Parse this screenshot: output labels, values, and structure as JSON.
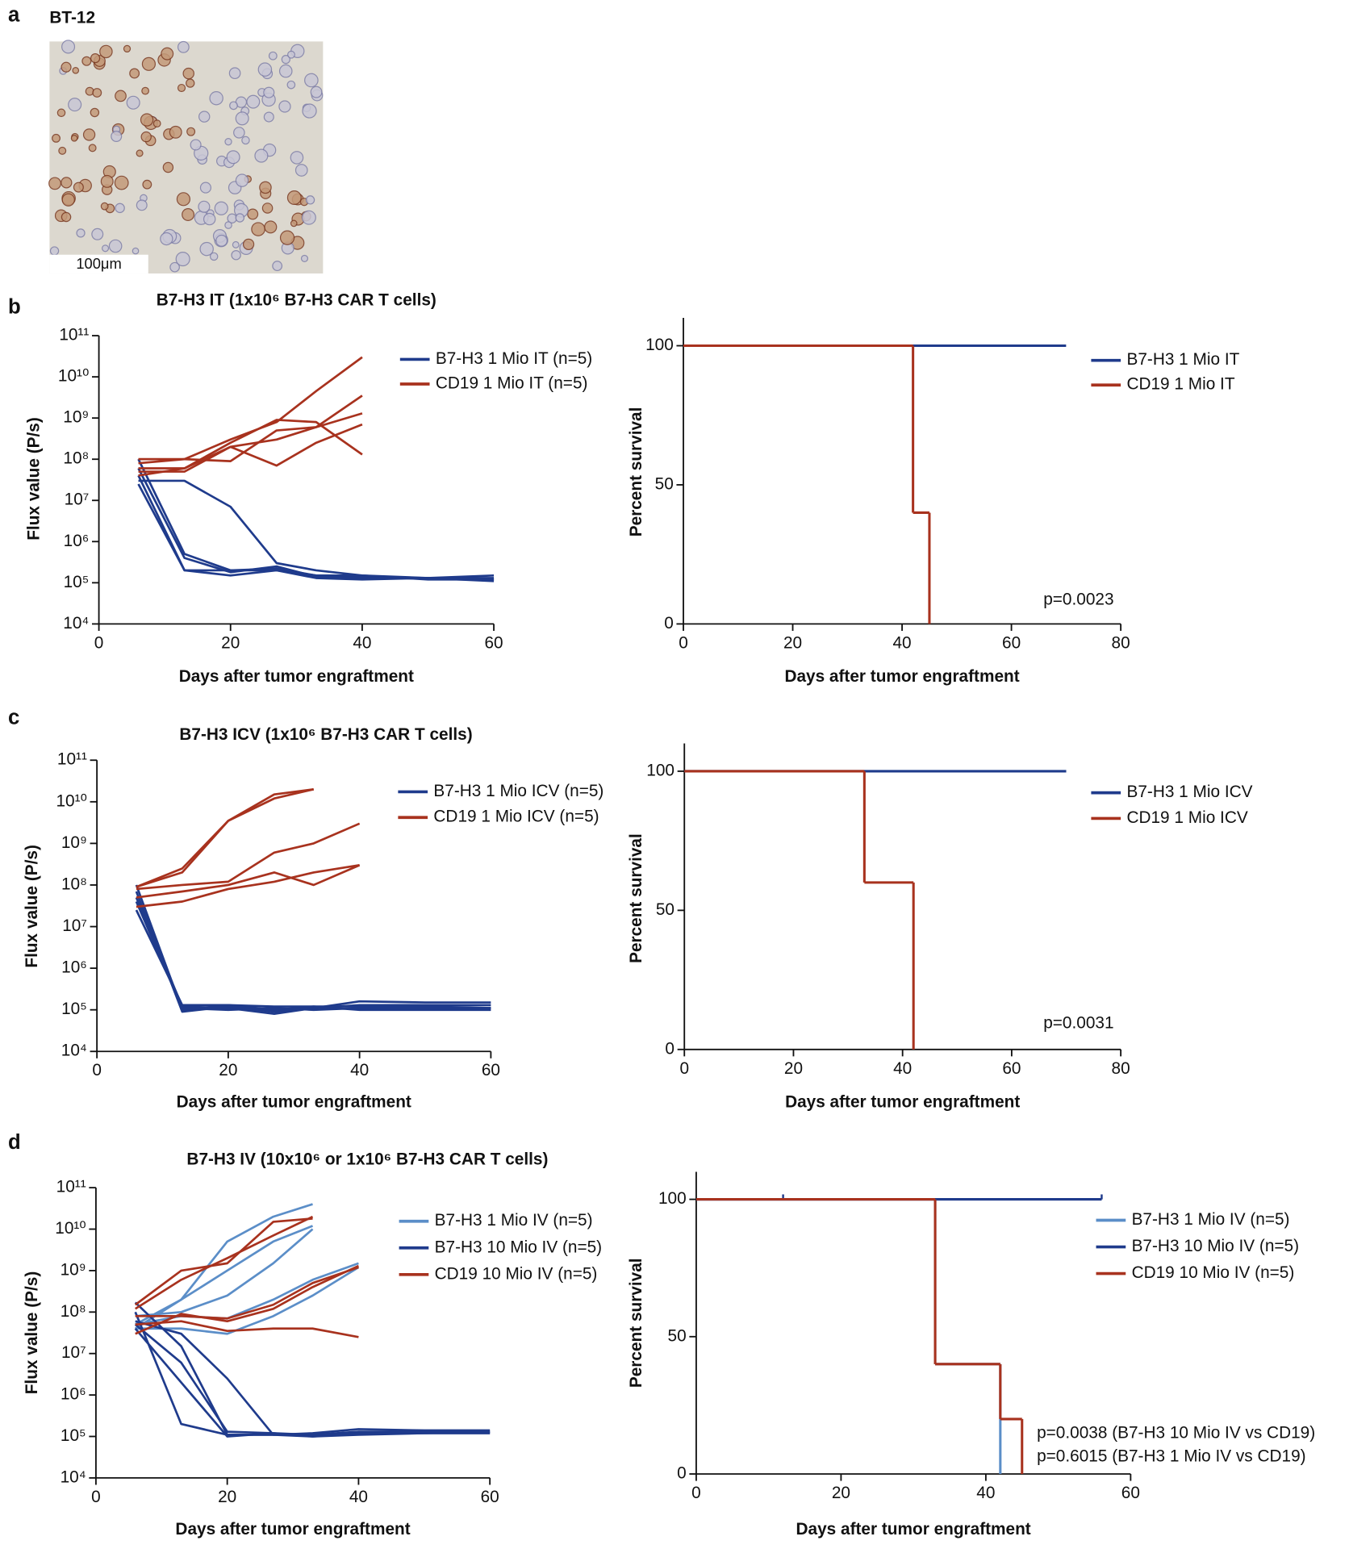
{
  "panel_labels": [
    "a",
    "b",
    "c",
    "d"
  ],
  "image": {
    "title": "BT-12",
    "scale_bar": "100μm"
  },
  "chart_data": [
    {
      "type": "line",
      "title": "B7-H3 IT (1x10⁶ B7-H3 CAR T cells)",
      "xlabel": "Days after tumor engraftment",
      "ylabel": "Flux value (P/s)",
      "log_y": true,
      "x": [
        6,
        13,
        20,
        27,
        33,
        40,
        50,
        60
      ],
      "xlim": [
        0,
        60
      ],
      "xticks": [
        0,
        20,
        40,
        60
      ],
      "ylim": [
        10000.0,
        100000000000.0
      ],
      "yticks": [
        {
          "value": 10000.0,
          "label": "10⁴"
        },
        {
          "value": 100000.0,
          "label": "10⁵"
        },
        {
          "value": 1000000.0,
          "label": "10⁶"
        },
        {
          "value": 10000000.0,
          "label": "10⁷"
        },
        {
          "value": 100000000.0,
          "label": "10⁸"
        },
        {
          "value": 1000000000.0,
          "label": "10⁹"
        },
        {
          "value": 10000000000.0,
          "label": "10¹⁰"
        },
        {
          "value": 100000000000.0,
          "label": "10¹¹"
        }
      ],
      "series": [
        {
          "name": "B7-H3 1 Mio IT (n=5)",
          "color": "#1f3b8c",
          "values": [
            [
              30000000.0,
              30000000.0,
              7000000.0,
              300000.0,
              200000.0,
              150000.0,
              130000.0,
              150000.0
            ],
            [
              100000000.0,
              500000.0,
              200000.0,
              200000.0,
              150000.0,
              130000.0,
              130000.0,
              130000.0
            ],
            [
              60000000.0,
              400000.0,
              180000.0,
              250000.0,
              140000.0,
              140000.0,
              130000.0,
              120000.0
            ],
            [
              40000000.0,
              200000.0,
              150000.0,
              200000.0,
              130000.0,
              120000.0,
              130000.0,
              110000.0
            ],
            [
              25000000.0,
              200000.0,
              200000.0,
              220000.0,
              150000.0,
              150000.0,
              120000.0,
              120000.0
            ]
          ]
        },
        {
          "name": "CD19 1 Mio IT (n=5)",
          "color": "#a8321e",
          "values": [
            [
              80000000.0,
              100000000.0,
              300000000.0,
              800000000.0,
              4500000000.0,
              30000000000.0,
              null,
              null
            ],
            [
              60000000.0,
              60000000.0,
              250000000.0,
              900000000.0,
              800000000.0,
              130000000.0,
              null,
              null
            ],
            [
              50000000.0,
              50000000.0,
              200000000.0,
              300000000.0,
              600000000.0,
              1300000000.0,
              null,
              null
            ],
            [
              40000000.0,
              60000000.0,
              200000000.0,
              70000000.0,
              250000000.0,
              700000000.0,
              null,
              null
            ],
            [
              100000000.0,
              100000000.0,
              90000000.0,
              500000000.0,
              600000000.0,
              3500000000.0,
              null,
              null
            ]
          ]
        }
      ]
    },
    {
      "type": "survival",
      "xlabel": "Days after tumor engraftment",
      "ylabel": "Percent survival",
      "xlim": [
        0,
        80
      ],
      "xticks": [
        0,
        20,
        40,
        60,
        80
      ],
      "ylim": [
        0,
        110
      ],
      "yticks": [
        0,
        50,
        100
      ],
      "annotations": [
        "p=0.0023"
      ],
      "series": [
        {
          "name": "B7-H3 1 Mio IT",
          "color": "#1f3b8c",
          "x": [
            0,
            70
          ],
          "values": [
            100,
            100
          ]
        },
        {
          "name": "CD19 1 Mio IT",
          "color": "#a8321e",
          "x": [
            0,
            42,
            45
          ],
          "values": [
            100,
            40,
            0
          ]
        }
      ]
    },
    {
      "type": "line",
      "title": "B7-H3 ICV (1x10⁶ B7-H3 CAR T cells)",
      "xlabel": "Days after tumor engraftment",
      "ylabel": "Flux value (P/s)",
      "log_y": true,
      "x": [
        6,
        13,
        20,
        27,
        33,
        40,
        50,
        60
      ],
      "xlim": [
        0,
        60
      ],
      "xticks": [
        0,
        20,
        40,
        60
      ],
      "ylim": [
        10000.0,
        100000000000.0
      ],
      "yticks": [
        {
          "value": 10000.0,
          "label": "10⁴"
        },
        {
          "value": 100000.0,
          "label": "10⁵"
        },
        {
          "value": 1000000.0,
          "label": "10⁶"
        },
        {
          "value": 10000000.0,
          "label": "10⁷"
        },
        {
          "value": 100000000.0,
          "label": "10⁸"
        },
        {
          "value": 1000000000.0,
          "label": "10⁹"
        },
        {
          "value": 10000000000.0,
          "label": "10¹⁰"
        },
        {
          "value": 100000000000.0,
          "label": "10¹¹"
        }
      ],
      "series": [
        {
          "name": "B7-H3 1 Mio ICV (n=5)",
          "color": "#1f3b8c",
          "values": [
            [
              100000000.0,
              100000.0,
              130000.0,
              100000.0,
              120000.0,
              120000.0,
              120000.0,
              110000.0
            ],
            [
              70000000.0,
              90000.0,
              120000.0,
              90000.0,
              110000.0,
              160000.0,
              150000.0,
              150000.0
            ],
            [
              50000000.0,
              120000.0,
              110000.0,
              80000.0,
              110000.0,
              130000.0,
              130000.0,
              130000.0
            ],
            [
              40000000.0,
              110000.0,
              100000.0,
              110000.0,
              100000.0,
              110000.0,
              110000.0,
              110000.0
            ],
            [
              25000000.0,
              130000.0,
              130000.0,
              120000.0,
              120000.0,
              100000.0,
              100000.0,
              100000.0
            ]
          ]
        },
        {
          "name": "CD19 1 Mio ICV (n=5)",
          "color": "#a8321e",
          "values": [
            [
              90000000.0,
              200000000.0,
              3500000000.0,
              12000000000.0,
              20000000000.0,
              null,
              null,
              null
            ],
            [
              90000000.0,
              250000000.0,
              3500000000.0,
              15000000000.0,
              20000000000.0,
              null,
              null,
              null
            ],
            [
              80000000.0,
              100000000.0,
              120000000.0,
              600000000.0,
              1000000000.0,
              3000000000.0,
              null,
              null
            ],
            [
              50000000.0,
              70000000.0,
              100000000.0,
              200000000.0,
              100000000.0,
              300000000.0,
              null,
              null
            ],
            [
              30000000.0,
              40000000.0,
              80000000.0,
              120000000.0,
              200000000.0,
              300000000.0,
              null,
              null
            ]
          ]
        }
      ]
    },
    {
      "type": "survival",
      "xlabel": "Days after tumor engraftment",
      "ylabel": "Percent survival",
      "xlim": [
        0,
        80
      ],
      "xticks": [
        0,
        20,
        40,
        60,
        80
      ],
      "ylim": [
        0,
        110
      ],
      "yticks": [
        0,
        50,
        100
      ],
      "annotations": [
        "p=0.0031"
      ],
      "series": [
        {
          "name": "B7-H3 1 Mio ICV",
          "color": "#1f3b8c",
          "x": [
            0,
            70
          ],
          "values": [
            100,
            100
          ]
        },
        {
          "name": "CD19 1 Mio ICV",
          "color": "#a8321e",
          "x": [
            0,
            33,
            42
          ],
          "values": [
            100,
            60,
            0
          ]
        }
      ]
    },
    {
      "type": "line",
      "title": "B7-H3 IV (10x10⁶ or 1x10⁶ B7-H3 CAR T cells)",
      "xlabel": "Days after tumor engraftment",
      "ylabel": "Flux value (P/s)",
      "log_y": true,
      "x": [
        6,
        13,
        20,
        27,
        33,
        40,
        50,
        60
      ],
      "xlim": [
        0,
        60
      ],
      "xticks": [
        0,
        20,
        40,
        60
      ],
      "ylim": [
        10000.0,
        100000000000.0
      ],
      "yticks": [
        {
          "value": 10000.0,
          "label": "10⁴"
        },
        {
          "value": 100000.0,
          "label": "10⁵"
        },
        {
          "value": 1000000.0,
          "label": "10⁶"
        },
        {
          "value": 10000000.0,
          "label": "10⁷"
        },
        {
          "value": 100000000.0,
          "label": "10⁸"
        },
        {
          "value": 1000000000.0,
          "label": "10⁹"
        },
        {
          "value": 10000000000.0,
          "label": "10¹⁰"
        },
        {
          "value": 100000000000.0,
          "label": "10¹¹"
        }
      ],
      "series": [
        {
          "name": "B7-H3 1 Mio IV (n=5)",
          "color": "#5b8ec8",
          "values": [
            [
              50000000.0,
              200000000.0,
              5000000000.0,
              20000000000.0,
              40000000000.0,
              null,
              null,
              null
            ],
            [
              40000000.0,
              200000000.0,
              1000000000.0,
              5000000000.0,
              12000000000.0,
              null,
              null,
              null
            ],
            [
              80000000.0,
              100000000.0,
              250000000.0,
              1500000000.0,
              10000000000.0,
              null,
              null,
              null
            ],
            [
              50000000.0,
              80000000.0,
              70000000.0,
              200000000.0,
              600000000.0,
              1500000000.0,
              null,
              null
            ],
            [
              40000000.0,
              40000000.0,
              30000000.0,
              80000000.0,
              250000000.0,
              1200000000.0,
              null,
              null
            ]
          ]
        },
        {
          "name": "B7-H3 10 Mio IV (n=5)",
          "color": "#1f3b8c",
          "values": [
            [
              170000000.0,
              15000000.0,
              110000.0,
              110000.0,
              110000.0,
              130000.0,
              130000.0,
              130000.0
            ],
            [
              60000000.0,
              30000000.0,
              2500000.0,
              110000.0,
              100000.0,
              110000.0,
              120000.0,
              120000.0
            ],
            [
              40000000.0,
              2000000.0,
              100000.0,
              120000.0,
              110000.0,
              120000.0,
              120000.0,
              130000.0
            ],
            [
              100000000.0,
              200000.0,
              110000.0,
              110000.0,
              120000.0,
              150000.0,
              140000.0,
              140000.0
            ],
            [
              50000000.0,
              6000000.0,
              130000.0,
              120000.0,
              100000.0,
              120000.0,
              120000.0,
              120000.0
            ]
          ]
        },
        {
          "name": "CD19 10 Mio IV (n=5)",
          "color": "#a8321e",
          "values": [
            [
              150000000.0,
              1000000000.0,
              1500000000.0,
              15000000000.0,
              18000000000.0,
              null,
              null,
              null
            ],
            [
              120000000.0,
              600000000.0,
              2000000000.0,
              7000000000.0,
              20000000000.0,
              null,
              null,
              null
            ],
            [
              80000000.0,
              80000000.0,
              70000000.0,
              150000000.0,
              500000000.0,
              1200000000.0,
              null,
              null
            ],
            [
              30000000.0,
              90000000.0,
              60000000.0,
              120000000.0,
              400000000.0,
              1300000000.0,
              null,
              null
            ],
            [
              50000000.0,
              60000000.0,
              35000000.0,
              40000000.0,
              40000000.0,
              25000000.0,
              null,
              null
            ]
          ]
        }
      ]
    },
    {
      "type": "survival",
      "xlabel": "Days after tumor engraftment",
      "ylabel": "Percent survival",
      "xlim": [
        0,
        60
      ],
      "xticks": [
        0,
        20,
        40,
        60
      ],
      "ylim": [
        0,
        110
      ],
      "yticks": [
        0,
        50,
        100
      ],
      "annotations": [
        "p=0.0038 (B7-H3 10 Mio IV vs CD19)",
        "p=0.6015 (B7-H3  1 Mio IV vs CD19)"
      ],
      "series": [
        {
          "name": "B7-H3 1 Mio IV (n=5)",
          "color": "#5b8ec8",
          "x": [
            0,
            33,
            42
          ],
          "values": [
            100,
            40,
            0
          ]
        },
        {
          "name": "B7-H3 10 Mio IV (n=5)",
          "color": "#1f3b8c",
          "x": [
            0,
            56
          ],
          "values": [
            100,
            100
          ],
          "censored": [
            12,
            56
          ]
        },
        {
          "name": "CD19 10 Mio IV (n=5)",
          "color": "#a8321e",
          "x": [
            0,
            33,
            42,
            45
          ],
          "values": [
            100,
            40,
            20,
            0
          ]
        }
      ]
    }
  ]
}
